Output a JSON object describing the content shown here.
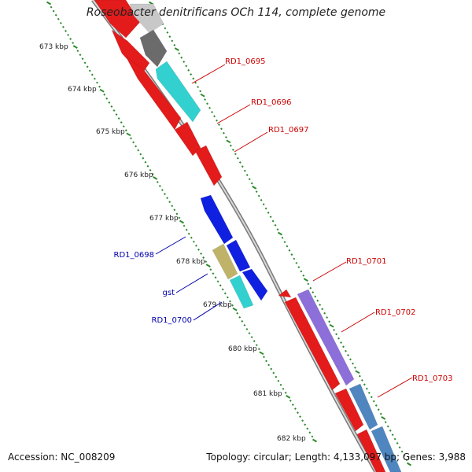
{
  "title": "Roseobacter denitrificans OCh 114, complete genome",
  "footer": {
    "accession": "Accession: NC_008209",
    "summary": "Topology: circular; Length: 4,133,097 bp; Genes: 3,988"
  },
  "colors": {
    "forward_label": "#cc0000",
    "reverse_label": "#0000aa",
    "tick": "#2a8a2a",
    "backbone": "#8a8a8a"
  },
  "ruler": [
    {
      "label": "673 kbp"
    },
    {
      "label": "674 kbp"
    },
    {
      "label": "675 kbp"
    },
    {
      "label": "676 kbp"
    },
    {
      "label": "677 kbp"
    },
    {
      "label": "678 kbp"
    },
    {
      "label": "679 kbp"
    },
    {
      "label": "680 kbp"
    },
    {
      "label": "681 kbp"
    },
    {
      "label": "682 kbp"
    }
  ],
  "gene_labels": [
    {
      "name": "RD1_0695",
      "strand": "forward"
    },
    {
      "name": "RD1_0696",
      "strand": "forward"
    },
    {
      "name": "RD1_0697",
      "strand": "forward"
    },
    {
      "name": "RD1_0698",
      "strand": "reverse"
    },
    {
      "name": "gst",
      "strand": "reverse"
    },
    {
      "name": "RD1_0700",
      "strand": "reverse"
    },
    {
      "name": "RD1_0701",
      "strand": "forward"
    },
    {
      "name": "RD1_0702",
      "strand": "forward"
    },
    {
      "name": "RD1_0703",
      "strand": "forward"
    }
  ]
}
